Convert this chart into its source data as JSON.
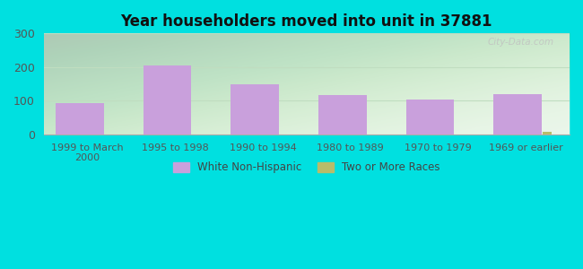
{
  "title": "Year householders moved into unit in 37881",
  "categories": [
    "1999 to March\n2000",
    "1995 to 1998",
    "1990 to 1994",
    "1980 to 1989",
    "1970 to 1979",
    "1969 or earlier"
  ],
  "white_non_hispanic": [
    93,
    205,
    150,
    116,
    103,
    119
  ],
  "two_or_more_races": [
    0,
    0,
    0,
    0,
    0,
    7
  ],
  "bar_color_white": "#c9a0dc",
  "bar_color_two": "#b8bc6a",
  "background_outer": "#00e0e0",
  "ylim": [
    0,
    300
  ],
  "yticks": [
    0,
    100,
    200,
    300
  ],
  "bar_width": 0.55,
  "bar_gap": 0.18,
  "legend_labels": [
    "White Non-Hispanic",
    "Two or More Races"
  ],
  "watermark": "City-Data.com",
  "grid_color": "#c8e8c8",
  "spine_color": "#aaaaaa"
}
